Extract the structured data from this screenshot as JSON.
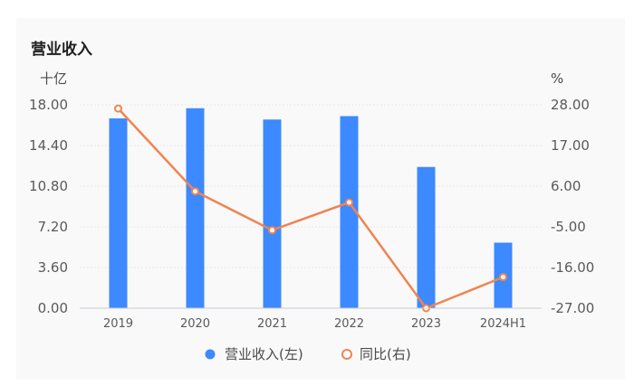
{
  "title": "营业收入",
  "colors": {
    "bar": "#3d89ff",
    "line": "#f0844f",
    "grid": "#e6e8ec",
    "axis": "#c9ccd3"
  },
  "chart_data": {
    "type": "bar",
    "categories": [
      "2019",
      "2020",
      "2021",
      "2022",
      "2023",
      "2024H1"
    ],
    "series": [
      {
        "name": "营业收入(左)",
        "type": "bar",
        "axis": "left",
        "values": [
          16.8,
          17.7,
          16.7,
          17.0,
          12.5,
          5.8
        ]
      },
      {
        "name": "同比(右)",
        "type": "line",
        "axis": "right",
        "values": [
          27.0,
          4.6,
          -5.9,
          1.6,
          -27.0,
          -18.6
        ]
      }
    ],
    "y_left": {
      "unit": "十亿",
      "ylim": [
        0,
        18
      ],
      "ticks": [
        "0.00",
        "3.60",
        "7.20",
        "10.80",
        "14.40",
        "18.00"
      ]
    },
    "y_right": {
      "unit": "%",
      "ylim": [
        -27,
        28
      ],
      "ticks": [
        "-27.00",
        "-16.00",
        "-5.00",
        "6.00",
        "17.00",
        "28.00"
      ]
    },
    "legend": {
      "position": "bottom",
      "items": [
        "营业收入(左)",
        "同比(右)"
      ]
    },
    "grid": true
  }
}
